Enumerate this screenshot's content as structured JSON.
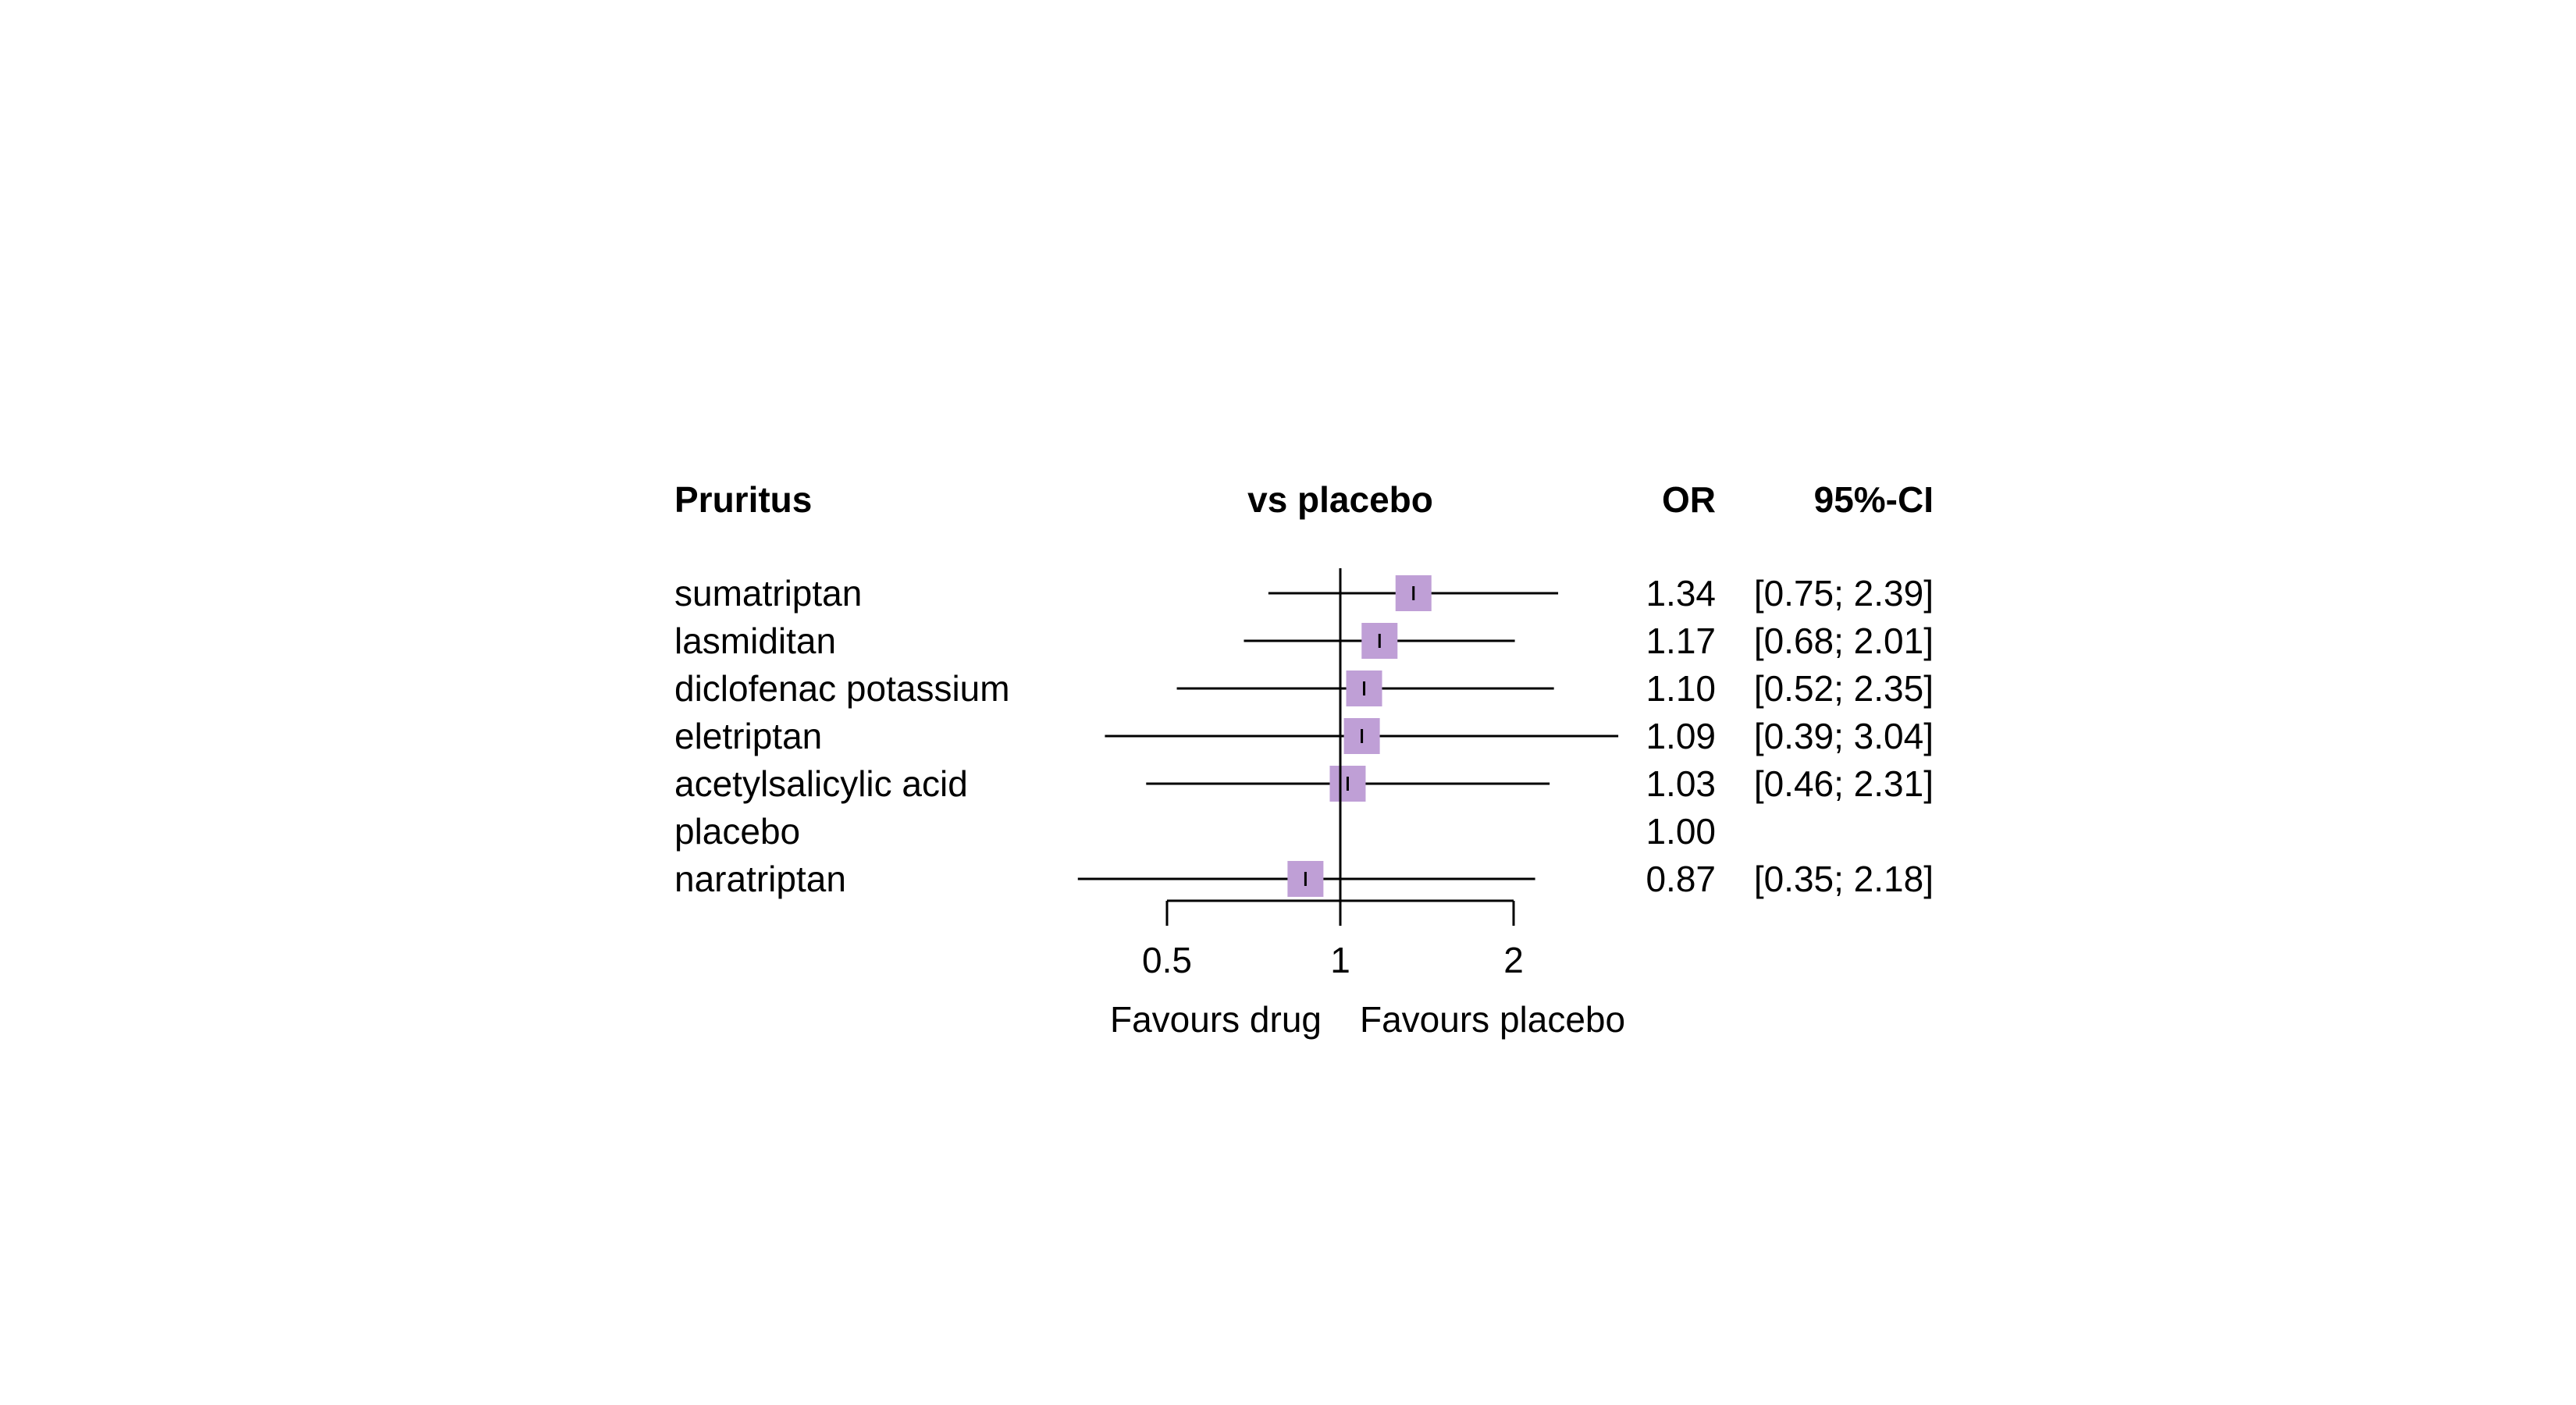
{
  "chart_data": {
    "type": "forest",
    "title": "Pruritus",
    "column_headers": {
      "plot": "vs placebo",
      "estimate": "OR",
      "ci": "95%-CI"
    },
    "reference_value": 1,
    "x_scale": "log",
    "x_ticks": [
      0.5,
      1,
      2
    ],
    "x_tick_labels": [
      "0.5",
      "1",
      "2"
    ],
    "xlabel_left": "Favours drug",
    "xlabel_right": "Favours placebo",
    "colors": {
      "box": "#bf9fd6",
      "line": "#000000"
    },
    "rows": [
      {
        "label": "sumatriptan",
        "or": 1.34,
        "lower": 0.75,
        "upper": 2.39,
        "or_text": "1.34",
        "ci_text": "[0.75; 2.39]"
      },
      {
        "label": "lasmiditan",
        "or": 1.17,
        "lower": 0.68,
        "upper": 2.01,
        "or_text": "1.17",
        "ci_text": "[0.68; 2.01]"
      },
      {
        "label": "diclofenac potassium",
        "or": 1.1,
        "lower": 0.52,
        "upper": 2.35,
        "or_text": "1.10",
        "ci_text": "[0.52; 2.35]"
      },
      {
        "label": "eletriptan",
        "or": 1.09,
        "lower": 0.39,
        "upper": 3.04,
        "or_text": "1.09",
        "ci_text": "[0.39; 3.04]"
      },
      {
        "label": "acetylsalicylic acid",
        "or": 1.03,
        "lower": 0.46,
        "upper": 2.31,
        "or_text": "1.03",
        "ci_text": "[0.46; 2.31]"
      },
      {
        "label": "placebo",
        "or": 1.0,
        "lower": null,
        "upper": null,
        "or_text": "1.00",
        "ci_text": ""
      },
      {
        "label": "naratriptan",
        "or": 0.87,
        "lower": 0.35,
        "upper": 2.18,
        "or_text": "0.87",
        "ci_text": "[0.35; 2.18]"
      }
    ]
  }
}
